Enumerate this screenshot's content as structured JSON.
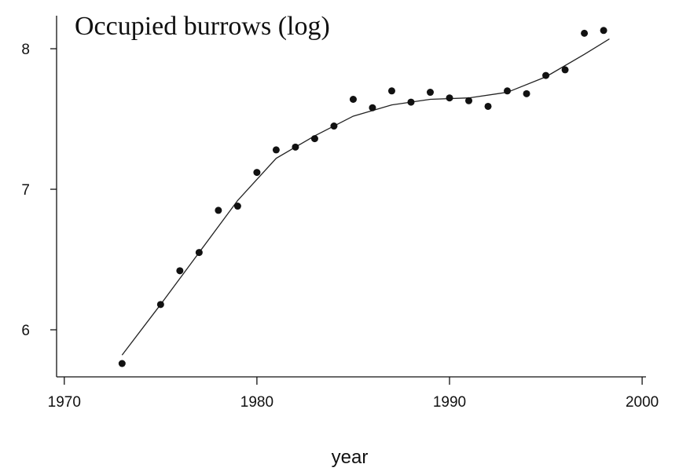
{
  "chart_data": {
    "type": "scatter",
    "title": "Occupied burrows (log)",
    "x_label": "year",
    "points": {
      "x": [
        1973,
        1975,
        1976,
        1977,
        1978,
        1979,
        1980,
        1981,
        1982,
        1983,
        1984,
        1985,
        1986,
        1987,
        1988,
        1989,
        1990,
        1991,
        1992,
        1993,
        1994,
        1995,
        1996,
        1997,
        1998
      ],
      "values": [
        5.76,
        6.18,
        6.42,
        6.55,
        6.85,
        6.88,
        7.12,
        7.28,
        7.3,
        7.36,
        7.45,
        7.64,
        7.58,
        7.7,
        7.62,
        7.69,
        7.65,
        7.63,
        7.59,
        7.7,
        7.68,
        7.81,
        7.85,
        8.11,
        8.13
      ],
      "color": "#111111"
    },
    "fit": {
      "x": [
        1973,
        1975,
        1977,
        1979,
        1981,
        1983,
        1985,
        1987,
        1989,
        1991,
        1993,
        1995,
        1997,
        1998.3
      ],
      "values": [
        5.82,
        6.18,
        6.55,
        6.92,
        7.22,
        7.38,
        7.52,
        7.6,
        7.64,
        7.65,
        7.69,
        7.8,
        7.96,
        8.07
      ],
      "color": "#222222"
    },
    "xlim": [
      1969.6,
      2000.2
    ],
    "xticks": [
      1970,
      1980,
      1990,
      2000
    ],
    "ylim": [
      5.665,
      8.235
    ],
    "yticks": [
      6,
      7,
      8
    ]
  }
}
